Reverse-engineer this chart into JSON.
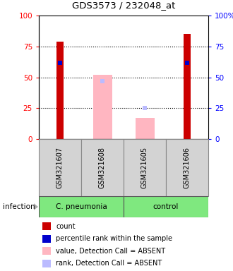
{
  "title": "GDS3573 / 232048_at",
  "samples": [
    "GSM321607",
    "GSM321608",
    "GSM321605",
    "GSM321606"
  ],
  "red_bars": [
    79,
    0,
    0,
    85
  ],
  "pink_bars": [
    0,
    52,
    17,
    0
  ],
  "blue_squares": [
    62,
    0,
    0,
    62
  ],
  "lavender_squares": [
    0,
    47,
    25,
    0
  ],
  "yticks": [
    0,
    25,
    50,
    75,
    100
  ],
  "red_bar_width": 0.18,
  "pink_bar_width": 0.45,
  "legend_items": [
    {
      "label": "count",
      "color": "#CC0000"
    },
    {
      "label": "percentile rank within the sample",
      "color": "#0000CC"
    },
    {
      "label": "value, Detection Call = ABSENT",
      "color": "#FFB6C1"
    },
    {
      "label": "rank, Detection Call = ABSENT",
      "color": "#BBBBFF"
    }
  ],
  "group1_label": "C. pneumonia",
  "group2_label": "control",
  "group_color": "#7FE87F",
  "sample_bg": "#D3D3D3",
  "infection_label": "infection"
}
